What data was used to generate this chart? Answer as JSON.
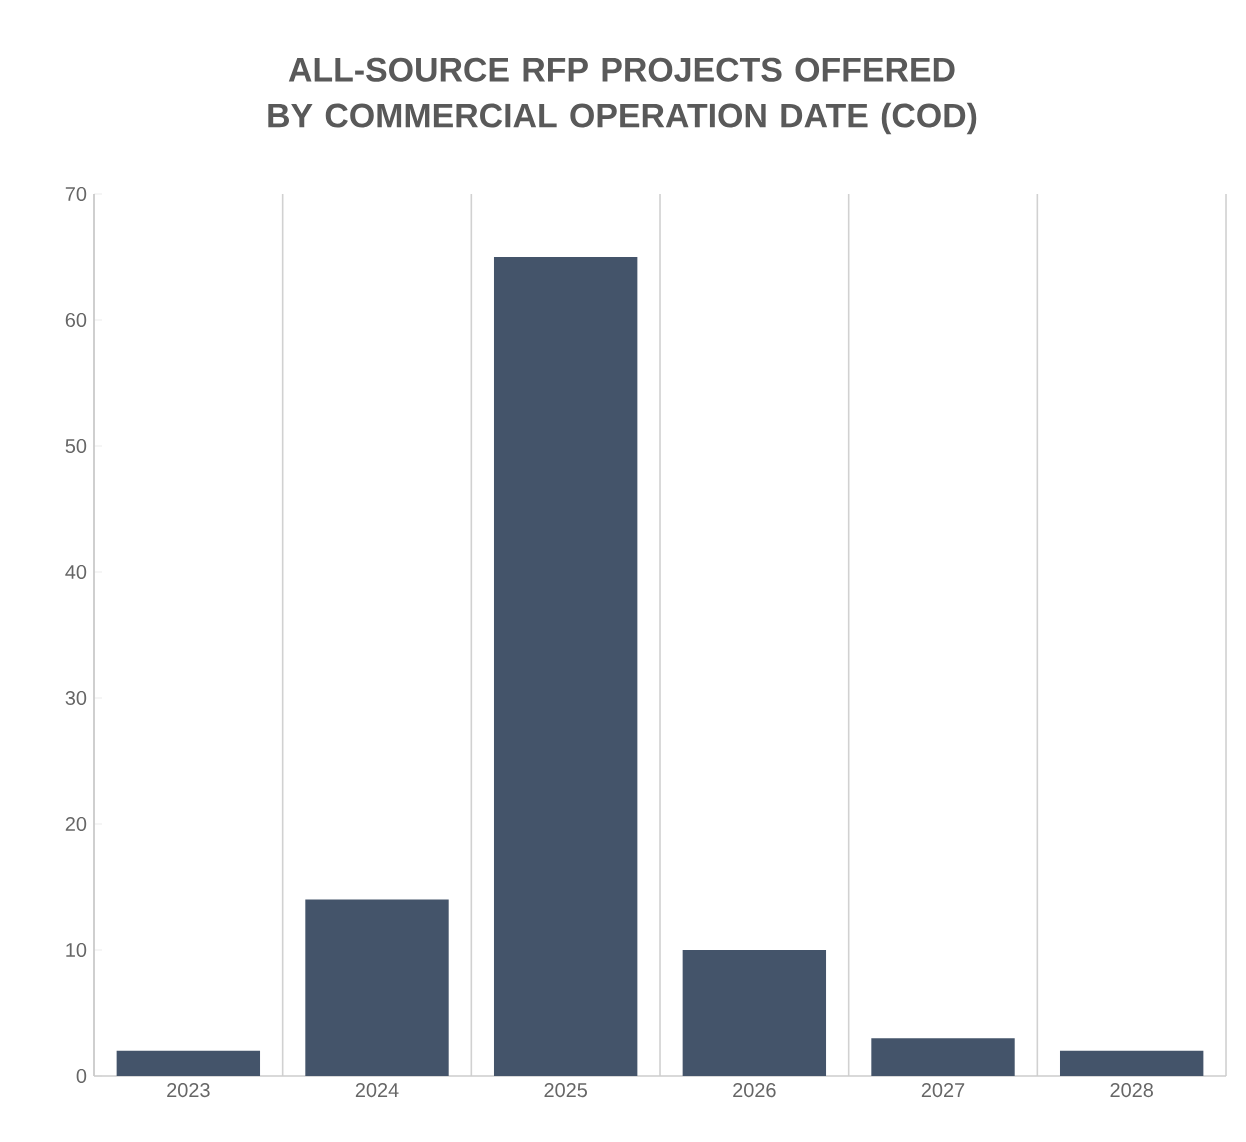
{
  "chart_data": {
    "type": "bar",
    "title": "ALL-SOURCE RFP PROJECTS OFFERED BY COMMERCIAL OPERATION DATE (COD)",
    "categories": [
      "2023",
      "2024",
      "2025",
      "2026",
      "2027",
      "2028"
    ],
    "values": [
      2,
      14,
      65,
      10,
      3,
      2
    ],
    "color": "#44546a",
    "ylim": [
      0,
      70
    ],
    "yticks": [
      0,
      10,
      20,
      30,
      40,
      50,
      60,
      70
    ],
    "grid": "x"
  }
}
